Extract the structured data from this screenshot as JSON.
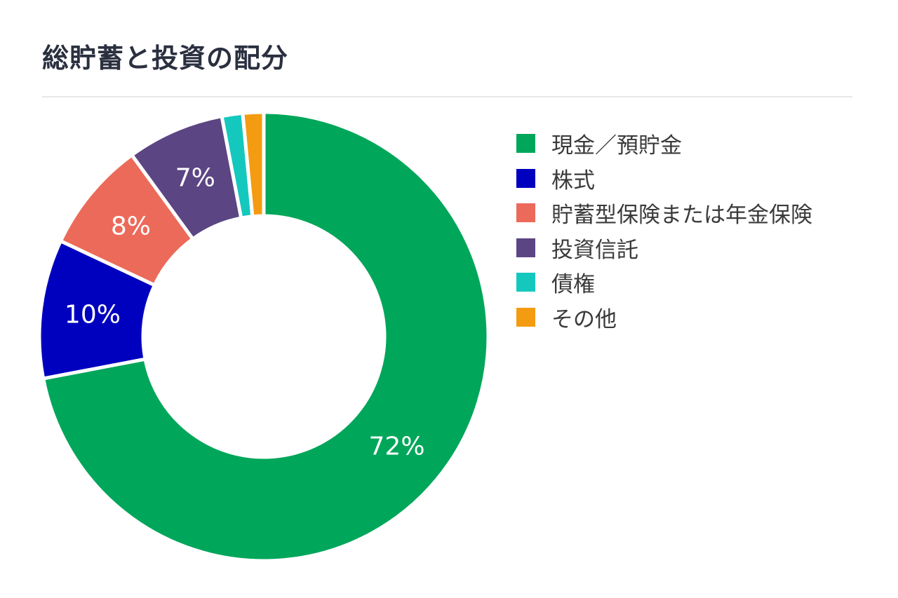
{
  "chart_data": {
    "type": "pie",
    "title": "総貯蓄と投資の配分",
    "categories": [
      "現金／預貯金",
      "株式",
      "貯蓄型保険または年金保険",
      "投資信託",
      "債権",
      "その他"
    ],
    "values": [
      72,
      10,
      8,
      7,
      1.5,
      1.5
    ],
    "data_labels": [
      "72%",
      "10%",
      "8%",
      "7%",
      "",
      ""
    ],
    "colors": [
      "#00A65A",
      "#0000BF",
      "#EC6A5A",
      "#5C4583",
      "#14C8BE",
      "#F39C12"
    ],
    "legend_position": "right",
    "unit": "%"
  }
}
